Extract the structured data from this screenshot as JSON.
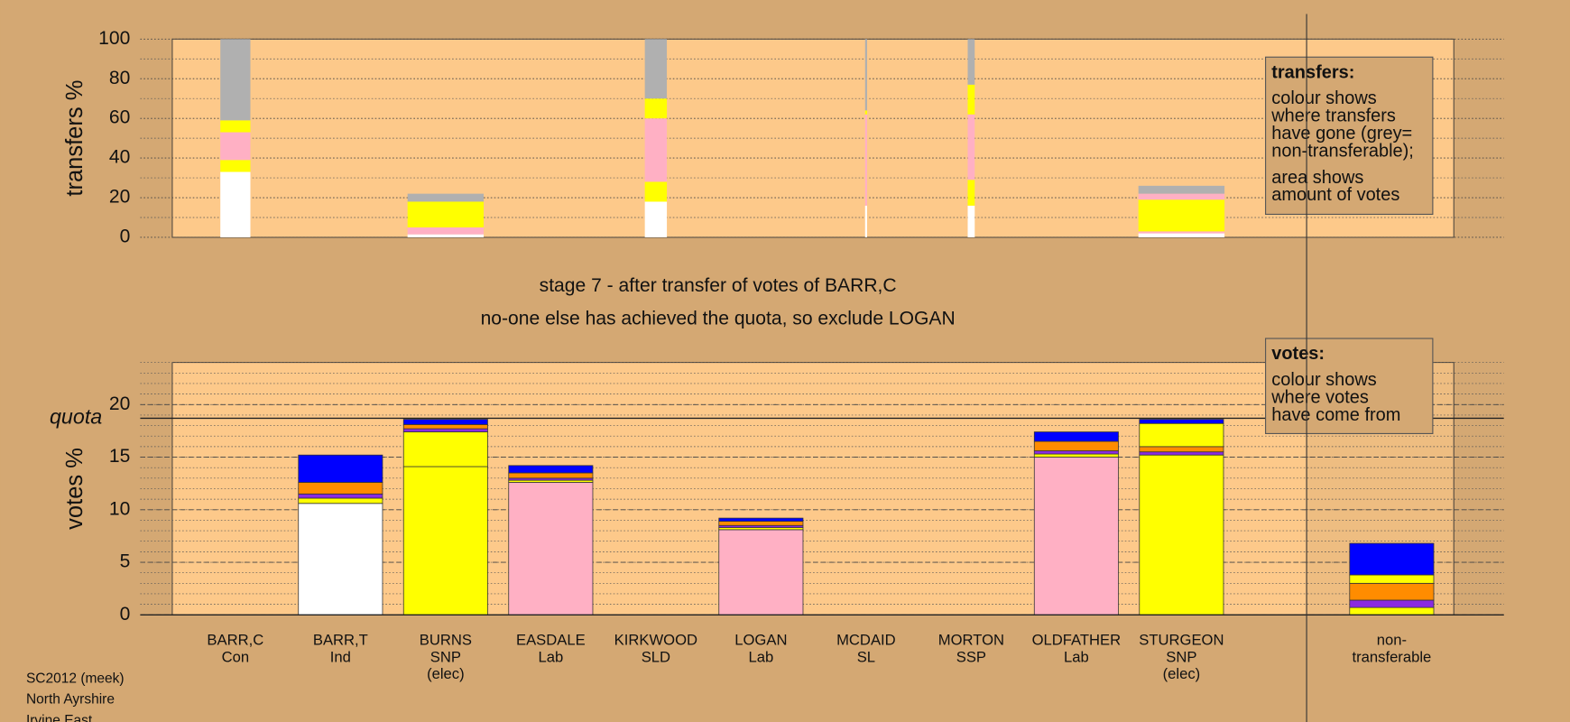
{
  "chart_data": [
    {
      "type": "transfer_bar",
      "ylabel": "transfers %",
      "ylim": [
        0,
        100
      ],
      "yticks": [
        0,
        20,
        40,
        60,
        80,
        100
      ],
      "x": [
        0,
        2,
        4,
        6,
        7,
        9
      ],
      "transfer_votes": [
        30,
        76,
        22,
        2,
        7,
        86
      ],
      "stacks": [
        {
          "values": [
            33,
            6,
            14,
            6,
            41
          ],
          "colors": [
            "#ffffff",
            "#ffff00",
            "#ffb0c4",
            "#ffff00",
            "#b0b0b0"
          ]
        },
        {
          "values": [
            1.5,
            3.5,
            13,
            4
          ],
          "colors": [
            "#ffffff",
            "#ffb0c4",
            "#ffff00",
            "#b0b0b0"
          ]
        },
        {
          "values": [
            18,
            10,
            32,
            10,
            30
          ],
          "colors": [
            "#ffffff",
            "#ffff00",
            "#ffb0c4",
            "#ffff00",
            "#b0b0b0"
          ]
        },
        {
          "values": [
            16,
            46,
            2,
            36
          ],
          "colors": [
            "#ffffff",
            "#ffb0c4",
            "#ffff00",
            "#b0b0b0"
          ]
        },
        {
          "values": [
            16,
            13,
            33,
            15,
            23
          ],
          "colors": [
            "#ffffff",
            "#ffff00",
            "#ffb0c4",
            "#ffff00",
            "#b0b0b0"
          ]
        },
        {
          "values": [
            2,
            1,
            16,
            3,
            4
          ],
          "colors": [
            "#ffffff",
            "#ffb0c4",
            "#ffff00",
            "#ffb0c4",
            "#b0b0b0"
          ]
        }
      ],
      "legend_title": "transfers:",
      "legend_lines": [
        "colour shows",
        "where transfers",
        "have gone (grey=",
        "non-transferable);"
      ],
      "legend_lines_2": [
        "area shows",
        "amount of votes"
      ]
    },
    {
      "type": "stacked_bar",
      "stage_text": "stage 7 - after transfer of votes of BARR,C",
      "action_text": "no-one else has achieved the quota, so exclude LOGAN",
      "ylabel": "votes %",
      "ylim": [
        0,
        24
      ],
      "yticks": [
        0,
        5,
        10,
        15,
        20
      ],
      "quota_label": "quota",
      "quota": 18.7,
      "categories": [
        [
          "BARR,C",
          "Con"
        ],
        [
          "BARR,T",
          "Ind"
        ],
        [
          "BURNS",
          "SNP",
          "(elec)"
        ],
        [
          "EASDALE",
          "Lab"
        ],
        [
          "KIRKWOOD",
          "SLD"
        ],
        [
          "LOGAN",
          "Lab"
        ],
        [
          "MCDAID",
          "SL"
        ],
        [
          "MORTON",
          "SSP"
        ],
        [
          "OLDFATHER",
          "Lab"
        ],
        [
          "STURGEON",
          "SNP",
          "(elec)"
        ],
        [
          "non-",
          "transferable"
        ]
      ],
      "stacks": [
        {
          "values": [
            0
          ],
          "colors": [
            "#ffffff"
          ]
        },
        {
          "values": [
            10.6,
            0.5,
            0.4,
            1.1,
            2.6
          ],
          "colors": [
            "#ffffff",
            "#ffff00",
            "#8a2be2",
            "#ff8c00",
            "#0000ff"
          ]
        },
        {
          "values": [
            14.1,
            3.3,
            0.3,
            0.4,
            0.5
          ],
          "colors": [
            "#ffff00",
            "#ffff00",
            "#8a2be2",
            "#ff8c00",
            "#0000ff"
          ]
        },
        {
          "values": [
            12.6,
            0.2,
            0.2,
            0.5,
            0.7
          ],
          "colors": [
            "#ffb0c4",
            "#ffff00",
            "#8a2be2",
            "#ff8c00",
            "#0000ff"
          ]
        },
        {
          "values": [
            0
          ],
          "colors": [
            "#ffffff"
          ]
        },
        {
          "values": [
            8.1,
            0.2,
            0.2,
            0.4,
            0.3
          ],
          "colors": [
            "#ffb0c4",
            "#ffff00",
            "#8a2be2",
            "#ff8c00",
            "#0000ff"
          ]
        },
        {
          "values": [
            0
          ],
          "colors": [
            "#ffffff"
          ]
        },
        {
          "values": [
            0
          ],
          "colors": [
            "#ffffff"
          ]
        },
        {
          "values": [
            15.0,
            0.3,
            0.3,
            0.9,
            0.9
          ],
          "colors": [
            "#ffb0c4",
            "#ffff00",
            "#8a2be2",
            "#ff8c00",
            "#0000ff"
          ]
        },
        {
          "values": [
            15.2,
            0.3,
            0.5,
            2.2,
            0.4
          ],
          "colors": [
            "#ffff00",
            "#8a2be2",
            "#ff8c00",
            "#ffff00",
            "#0000ff"
          ]
        },
        {
          "values": [
            0.7,
            0.7,
            1.6,
            0.8,
            3.0
          ],
          "colors": [
            "#ffff00",
            "#8a2be2",
            "#ff8c00",
            "#ffff00",
            "#0000ff"
          ]
        }
      ],
      "legend_title": "votes:",
      "legend_lines": [
        "colour shows",
        "where votes",
        "have come from"
      ],
      "footer": [
        "SC2012 (meek)",
        "North Ayrshire",
        "Irvine East"
      ]
    }
  ]
}
